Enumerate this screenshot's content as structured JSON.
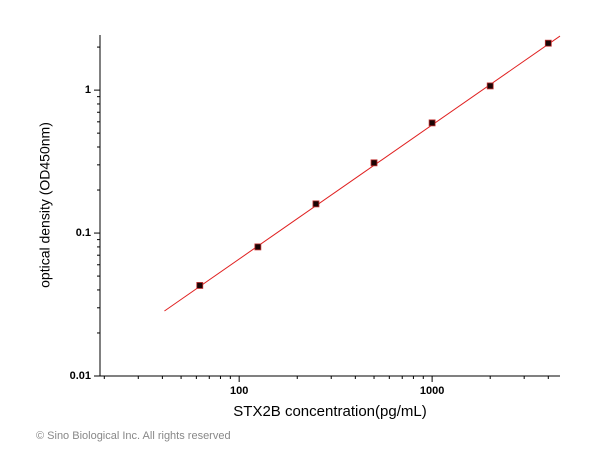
{
  "chart_data": {
    "type": "scatter",
    "x_label": "STX2B  concentration(pg/mL)",
    "y_label": "optical density (OD450nm)",
    "footer": "© Sino Biological Inc. All rights reserved",
    "xscale": "log",
    "yscale": "log",
    "xlim": [
      19,
      4600
    ],
    "ylim": [
      0.01,
      2.43
    ],
    "xticks": [
      100,
      1000
    ],
    "yticks": [
      0.01,
      0.1,
      1
    ],
    "xminor": [
      20,
      30,
      40,
      50,
      60,
      70,
      80,
      90,
      200,
      300,
      400,
      500,
      600,
      700,
      800,
      900,
      2000,
      3000,
      4000
    ],
    "yminor": [
      0.02,
      0.03,
      0.04,
      0.05,
      0.06,
      0.07,
      0.08,
      0.09,
      0.2,
      0.3,
      0.4,
      0.5,
      0.6,
      0.7,
      0.8,
      0.9,
      2
    ],
    "series": [
      {
        "style": "markers",
        "color": "#1a0505",
        "x": [
          62.5,
          125,
          250,
          500,
          1000,
          2000,
          4000
        ],
        "values": [
          0.043,
          0.08,
          0.16,
          0.31,
          0.59,
          1.07,
          2.13
        ]
      },
      {
        "style": "line",
        "color": "#e02020",
        "x": [
          41,
          4600
        ],
        "values": [
          0.0285,
          2.39
        ]
      }
    ]
  }
}
